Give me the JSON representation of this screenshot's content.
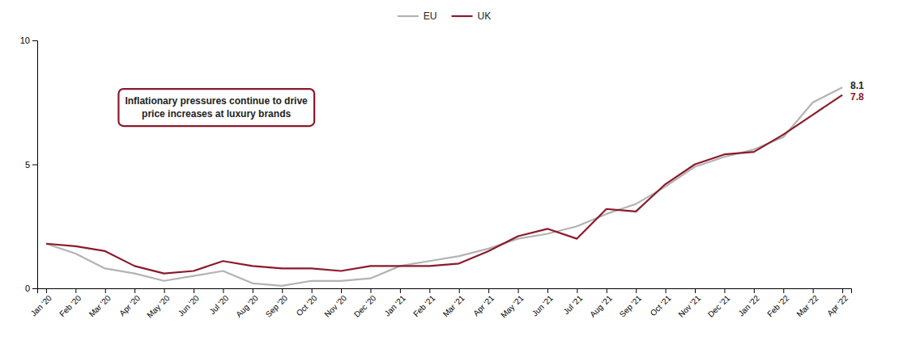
{
  "chart_data": {
    "type": "line",
    "categories": [
      "Jan '20",
      "Feb '20",
      "Mar '20",
      "Apr '20",
      "May '20",
      "Jun '20",
      "Jul '20",
      "Aug '20",
      "Sep '20",
      "Oct '20",
      "Nov '20",
      "Dec '20",
      "Jan '21",
      "Feb '21",
      "Mar '21",
      "Apr '21",
      "May '21",
      "Jun '21",
      "Jul '21",
      "Aug '21",
      "Sep '21",
      "Oct '21",
      "Nov '21",
      "Dec '21",
      "Jan '22",
      "Feb '22",
      "Mar '22",
      "Apr '22"
    ],
    "series": [
      {
        "name": "EU",
        "color": "#b3b3b3",
        "values": [
          1.8,
          1.4,
          0.8,
          0.6,
          0.3,
          0.5,
          0.7,
          0.2,
          0.1,
          0.3,
          0.3,
          0.4,
          0.9,
          1.1,
          1.3,
          1.6,
          2.0,
          2.2,
          2.5,
          3.0,
          3.4,
          4.1,
          4.9,
          5.3,
          5.6,
          6.1,
          7.5,
          8.1
        ]
      },
      {
        "name": "UK",
        "color": "#8b1a2b",
        "values": [
          1.8,
          1.7,
          1.5,
          0.9,
          0.6,
          0.7,
          1.1,
          0.9,
          0.8,
          0.8,
          0.7,
          0.9,
          0.9,
          0.9,
          1.0,
          1.5,
          2.1,
          2.4,
          2.0,
          3.2,
          3.1,
          4.2,
          5.0,
          5.4,
          5.5,
          6.2,
          7.0,
          7.8
        ]
      }
    ],
    "ylim": [
      0,
      10
    ],
    "yticks": [
      0,
      5,
      10
    ],
    "grid": false,
    "legend": "top",
    "annotations": [
      {
        "text": "8.1",
        "x": "Apr '22",
        "y": 8.1,
        "color": "#222222"
      },
      {
        "text": "7.8",
        "x": "Apr '22",
        "y": 7.8,
        "color": "#8b1a2b"
      },
      {
        "lines": [
          "Inflationary pressures continue to drive",
          "price increases at luxury brands"
        ],
        "color": "#8b1a2b"
      }
    ]
  }
}
